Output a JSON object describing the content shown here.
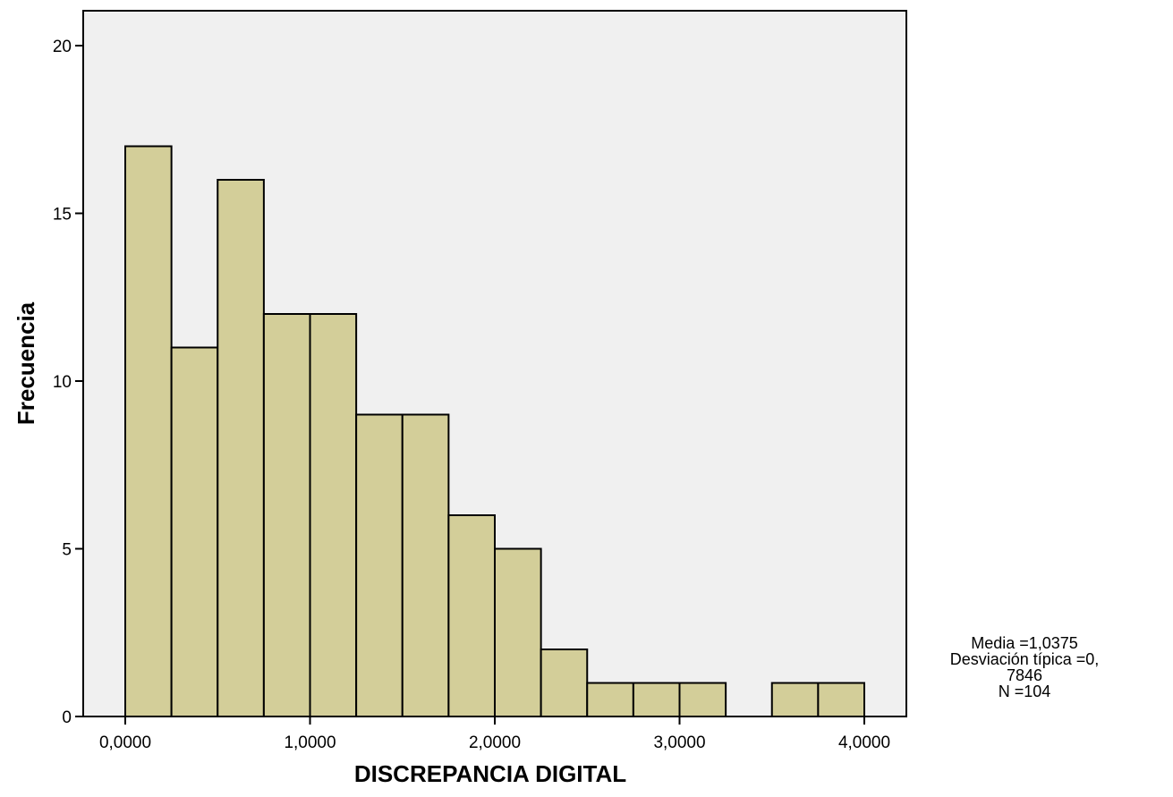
{
  "chart_data": {
    "type": "bar",
    "title": "",
    "xlabel": "DISCREPANCIA DIGITAL",
    "ylabel": "Frecuencia",
    "xlim": [
      -0.25,
      4.5
    ],
    "ylim": [
      0,
      21
    ],
    "x_ticks": [
      0,
      1,
      2,
      3,
      4
    ],
    "x_tick_labels": [
      "0,0000",
      "1,0000",
      "2,0000",
      "3,0000",
      "4,0000"
    ],
    "y_ticks": [
      0,
      5,
      10,
      15,
      20
    ],
    "y_tick_labels": [
      "0",
      "5",
      "10",
      "15",
      "20"
    ],
    "bin_width": 0.25,
    "bins": [
      {
        "start": 0.0,
        "value": 17
      },
      {
        "start": 0.25,
        "value": 11
      },
      {
        "start": 0.5,
        "value": 16
      },
      {
        "start": 0.75,
        "value": 12
      },
      {
        "start": 1.0,
        "value": 12
      },
      {
        "start": 1.25,
        "value": 9
      },
      {
        "start": 1.5,
        "value": 9
      },
      {
        "start": 1.75,
        "value": 6
      },
      {
        "start": 2.0,
        "value": 5
      },
      {
        "start": 2.25,
        "value": 2
      },
      {
        "start": 2.5,
        "value": 1
      },
      {
        "start": 2.75,
        "value": 1
      },
      {
        "start": 3.0,
        "value": 1
      },
      {
        "start": 3.25,
        "value": 0
      },
      {
        "start": 3.5,
        "value": 1
      },
      {
        "start": 3.75,
        "value": 1
      }
    ],
    "grid": false,
    "colors": {
      "bar_fill": "#d3ce99",
      "bar_stroke": "#000000",
      "plot_background": "#f0f0f0"
    }
  },
  "stats": {
    "media": "Media =1,0375",
    "desviacion_1": "Desviación típica =0,",
    "desviacion_2": "7846",
    "n": "N =104"
  }
}
